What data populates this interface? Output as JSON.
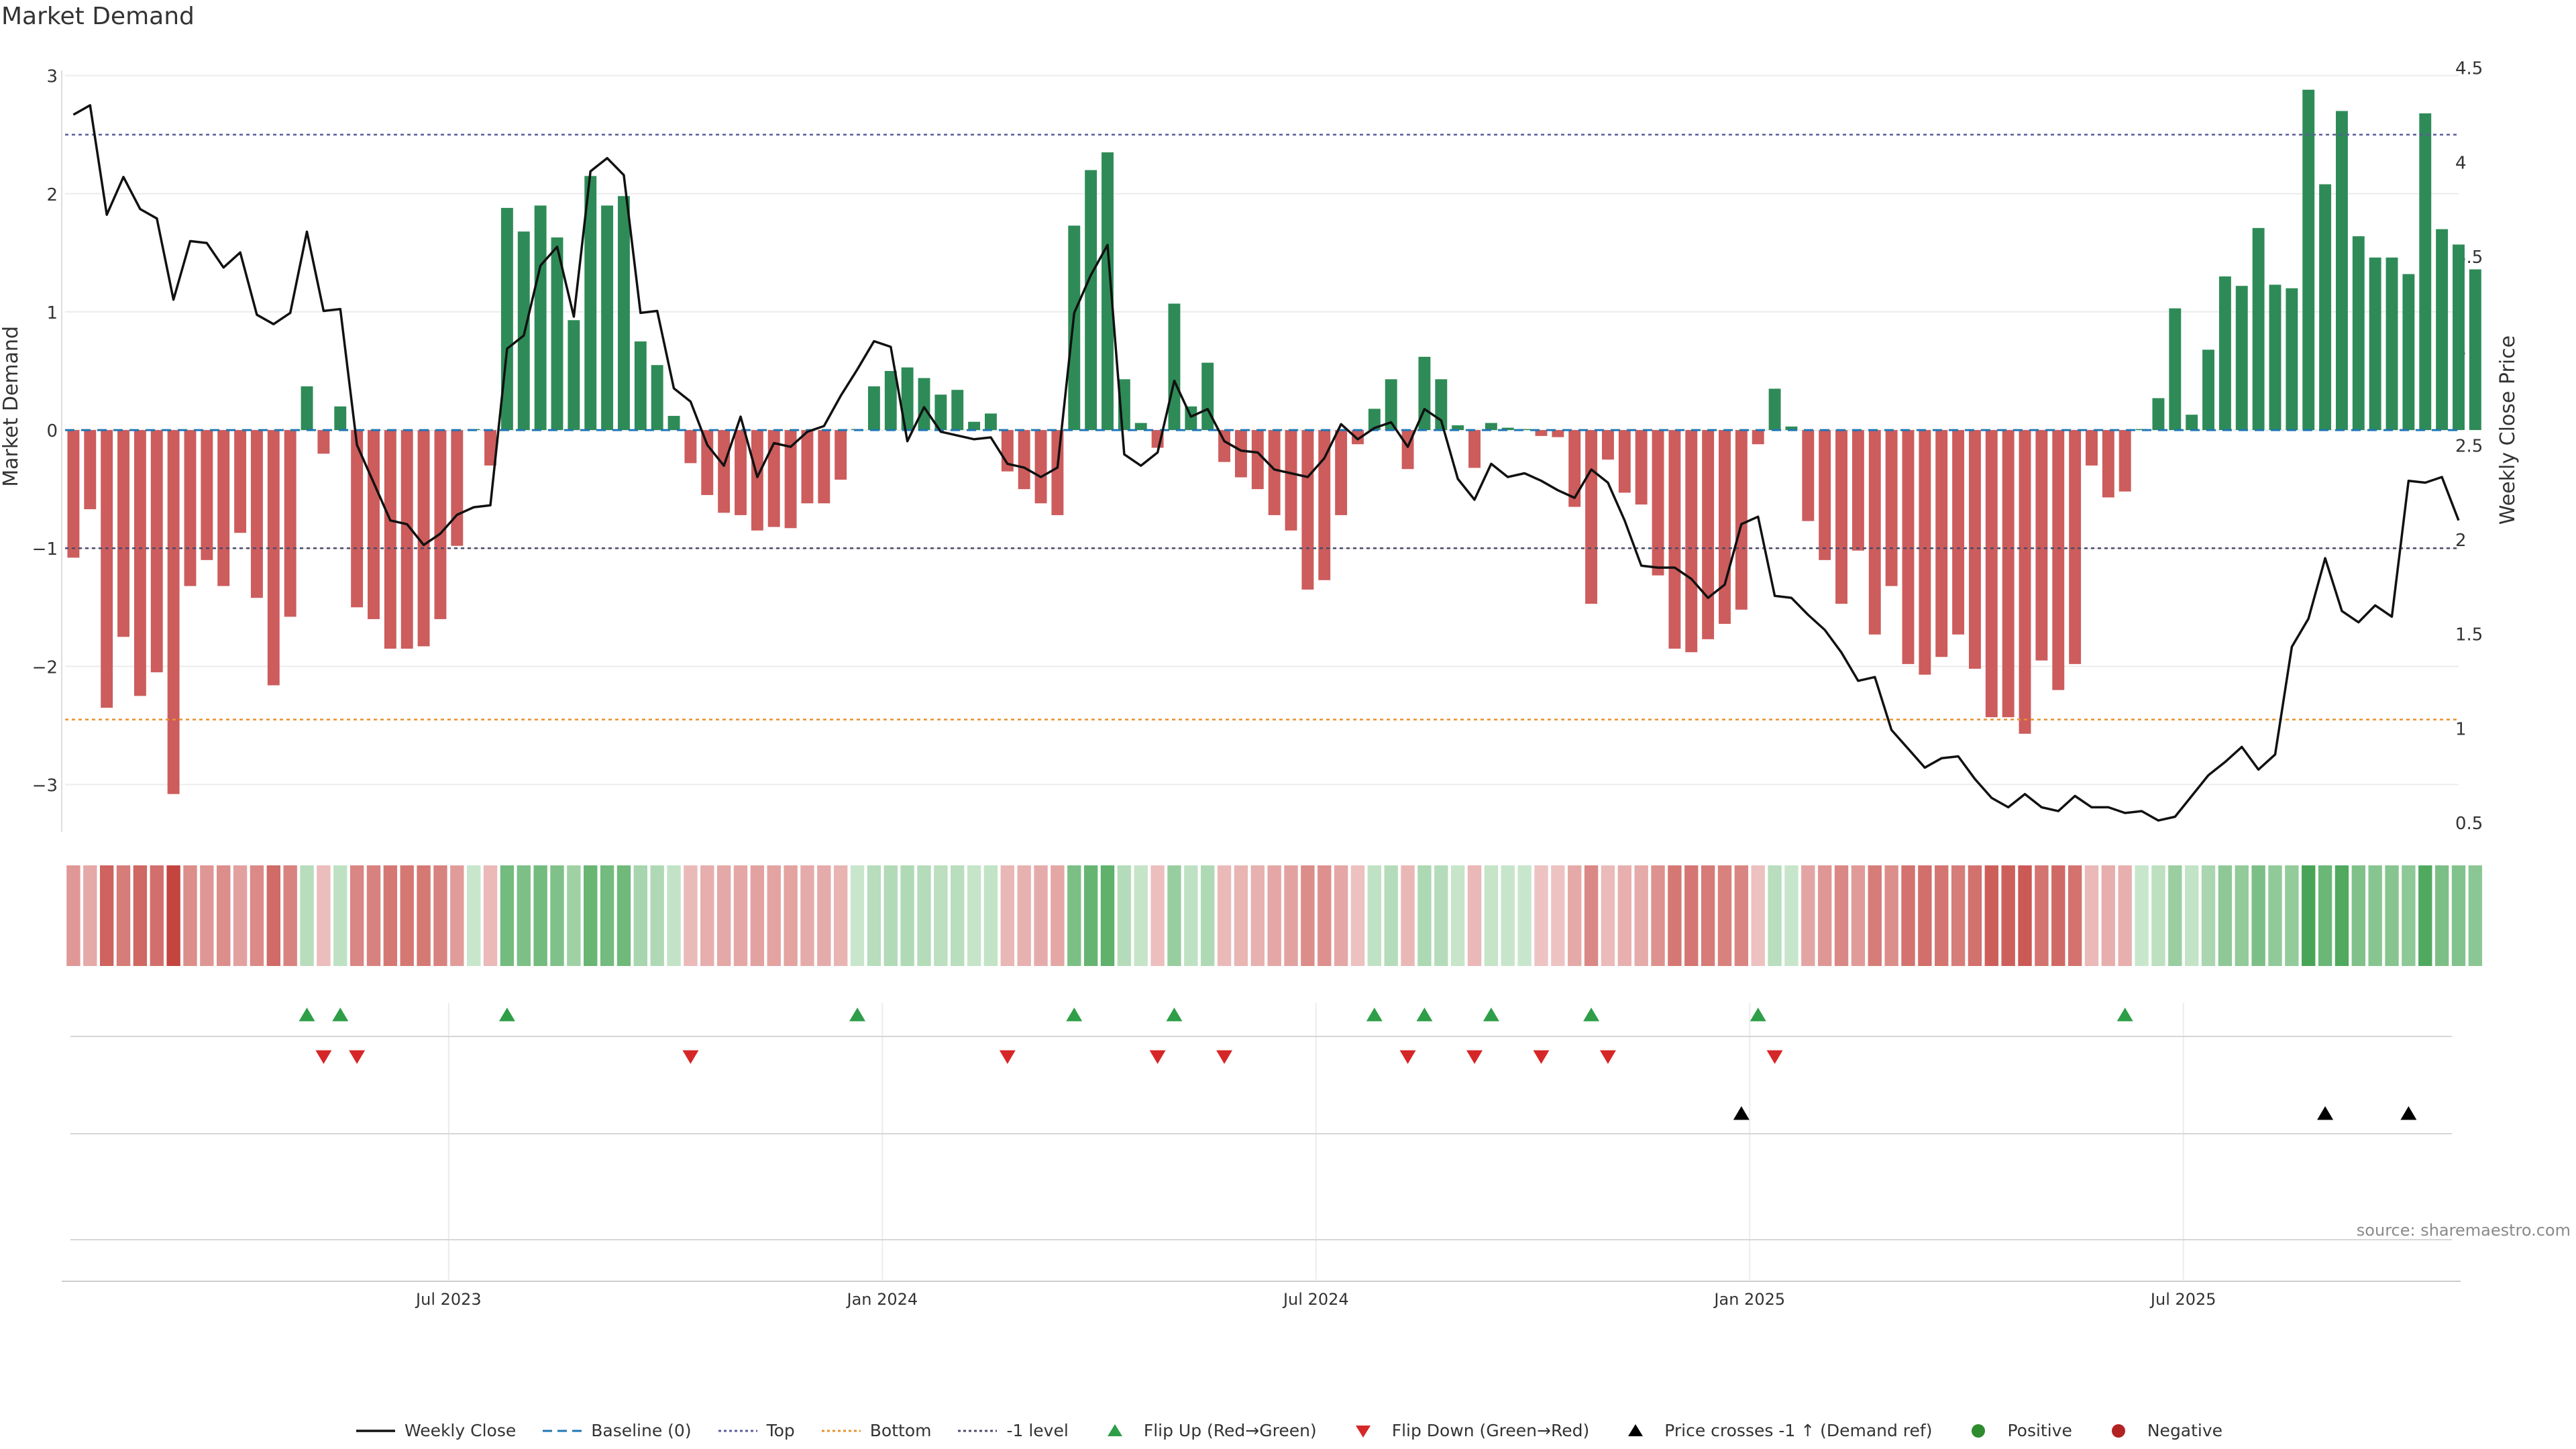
{
  "title": "Market Demand",
  "source": "source: sharemaestro.com",
  "colors": {
    "positive": "#2e8b57",
    "negative": "#cd5c5c",
    "price": "#111111",
    "top": "#5b5b9b",
    "bottom": "#e8912e",
    "minus1": "#4a4a6a",
    "baseline": "#1f77b4",
    "flip_up": "#2e9e48",
    "flip_down": "#d62728",
    "cross": "#000000"
  },
  "chart_data": {
    "type": "bar",
    "title": "Market Demand",
    "ylabel": "Market Demand",
    "y2label": "Weekly Close Price",
    "ylim": [
      -3.4,
      3.1
    ],
    "y2lim": [
      0.45,
      4.52
    ],
    "yticks": [
      "−3",
      "−2",
      "−1",
      "0",
      "1",
      "2",
      "3"
    ],
    "ytick_values": [
      -3,
      -2,
      -1,
      0,
      1,
      2,
      3
    ],
    "y2ticks": [
      "0.5",
      "1",
      "1.5",
      "2",
      "2.5",
      "3",
      "3.5",
      "4",
      "4.5"
    ],
    "y2tick_values": [
      0.5,
      1,
      1.5,
      2,
      2.5,
      3,
      3.5,
      4,
      4.5
    ],
    "xticks": [
      "Jul 2023",
      "Jan 2024",
      "Jul 2024",
      "Jan 2025",
      "Jul 2025"
    ],
    "xtick_weeks": [
      23,
      49,
      75,
      101,
      127
    ],
    "x_start_week": 0,
    "x_end_week": 143.5,
    "levels": {
      "top": 2.5,
      "bottom": -2.45,
      "minus1": -1,
      "baseline": 0
    },
    "demand": [
      -1.08,
      -0.67,
      -2.35,
      -1.75,
      -2.25,
      -2.05,
      -3.08,
      -1.32,
      -1.1,
      -1.32,
      -0.87,
      -1.42,
      -2.16,
      -1.58,
      0.37,
      -0.2,
      0.2,
      -1.5,
      -1.6,
      -1.85,
      -1.85,
      -1.83,
      -1.6,
      -0.98,
      0,
      -0.3,
      1.88,
      1.68,
      1.9,
      1.63,
      0.93,
      2.15,
      1.9,
      1.98,
      0.75,
      0.55,
      0.12,
      -0.28,
      -0.55,
      -0.7,
      -0.72,
      -0.85,
      -0.82,
      -0.83,
      -0.62,
      -0.62,
      -0.42,
      0,
      0.37,
      0.5,
      0.53,
      0.44,
      0.3,
      0.34,
      0.07,
      0.14,
      -0.35,
      -0.5,
      -0.62,
      -0.72,
      1.73,
      2.2,
      2.35,
      0.43,
      0.06,
      -0.15,
      1.07,
      0.2,
      0.57,
      -0.27,
      -0.4,
      -0.5,
      -0.72,
      -0.85,
      -1.35,
      -1.27,
      -0.72,
      -0.12,
      0.18,
      0.43,
      -0.33,
      0.62,
      0.43,
      0.04,
      -0.32,
      0.06,
      0.02,
      0,
      -0.05,
      -0.06,
      -0.65,
      -1.47,
      -0.25,
      -0.53,
      -0.63,
      -1.23,
      -1.85,
      -1.88,
      -1.77,
      -1.64,
      -1.52,
      -0.12,
      0.35,
      0.03,
      -0.77,
      -1.1,
      -1.47,
      -1.02,
      -1.73,
      -1.32,
      -1.98,
      -2.07,
      -1.92,
      -1.73,
      -2.02,
      -2.43,
      -2.43,
      -2.57,
      -1.95,
      -2.2,
      -1.98,
      -0.3,
      -0.57,
      -0.52,
      0,
      0.27,
      1.03,
      0.13,
      0.68,
      1.3,
      1.22,
      1.71,
      1.23,
      1.2,
      2.88,
      2.08,
      2.7,
      1.64,
      1.46,
      1.46,
      1.32,
      2.68,
      1.7,
      1.57,
      1.36
    ],
    "price": [
      4.25,
      4.3,
      3.72,
      3.92,
      3.75,
      3.7,
      3.27,
      3.58,
      3.57,
      3.44,
      3.52,
      3.19,
      3.14,
      3.2,
      3.63,
      3.21,
      3.22,
      2.5,
      2.3,
      2.1,
      2.08,
      1.97,
      2.03,
      2.13,
      2.17,
      2.18,
      3.01,
      3.08,
      3.45,
      3.55,
      3.18,
      3.95,
      4.02,
      3.93,
      3.2,
      3.21,
      2.8,
      2.73,
      2.5,
      2.39,
      2.65,
      2.33,
      2.51,
      2.49,
      2.57,
      2.6,
      2.76,
      2.9,
      3.05,
      3.02,
      2.52,
      2.7,
      2.57,
      2.55,
      2.53,
      2.54,
      2.4,
      2.38,
      2.33,
      2.38,
      3.2,
      3.4,
      3.56,
      2.45,
      2.39,
      2.46,
      2.84,
      2.65,
      2.69,
      2.52,
      2.47,
      2.46,
      2.37,
      2.35,
      2.33,
      2.43,
      2.61,
      2.53,
      2.59,
      2.62,
      2.49,
      2.69,
      2.63,
      2.32,
      2.21,
      2.4,
      2.33,
      2.35,
      2.31,
      2.26,
      2.22,
      2.37,
      2.3,
      2.1,
      1.86,
      1.85,
      1.85,
      1.79,
      1.69,
      1.76,
      2.08,
      2.12,
      1.7,
      1.69,
      1.6,
      1.52,
      1.4,
      1.25,
      1.27,
      0.99,
      0.89,
      0.79,
      0.84,
      0.85,
      0.73,
      0.63,
      0.58,
      0.65,
      0.58,
      0.56,
      0.64,
      0.58,
      0.58,
      0.55,
      0.56,
      0.51,
      0.53,
      0.64,
      0.75,
      0.82,
      0.9,
      0.78,
      0.86,
      1.43,
      1.58,
      1.9,
      1.62,
      1.56,
      1.65,
      1.59,
      2.31,
      2.3,
      2.33,
      2.1
    ],
    "flip_up_weeks": [
      14,
      16,
      26,
      47,
      60,
      66,
      78,
      81,
      85,
      91,
      101,
      123
    ],
    "flip_down_weeks": [
      15,
      17,
      37,
      56,
      65,
      69,
      80,
      84,
      88,
      92,
      102
    ],
    "cross_weeks": [
      100,
      135,
      140
    ]
  },
  "legend": [
    {
      "label": "Weekly Close",
      "kind": "line",
      "color": "#111111",
      "icon": "solid-line"
    },
    {
      "label": "Baseline (0)",
      "kind": "dashed",
      "color": "#1f77b4",
      "icon": "dashed-line"
    },
    {
      "label": "Top",
      "kind": "dotted",
      "color": "#5b5b9b",
      "icon": "dotted-line"
    },
    {
      "label": "Bottom",
      "kind": "dotted",
      "color": "#e8912e",
      "icon": "dotted-line"
    },
    {
      "label": "-1 level",
      "kind": "dotted",
      "color": "#4a4a6a",
      "icon": "dotted-line"
    },
    {
      "label": "Flip Up (Red→Green)",
      "kind": "tri-up",
      "color": "#2e9e48",
      "icon": "triangle-up-icon"
    },
    {
      "label": "Flip Down (Green→Red)",
      "kind": "tri-down",
      "color": "#d62728",
      "icon": "triangle-down-icon"
    },
    {
      "label": "Price crosses -1 ↑ (Demand ref)",
      "kind": "tri-up",
      "color": "#000000",
      "icon": "triangle-up-icon"
    },
    {
      "label": "Positive",
      "kind": "dot",
      "color": "#2e8b2e",
      "icon": "dot-icon"
    },
    {
      "label": "Negative",
      "kind": "dot",
      "color": "#b22222",
      "icon": "dot-icon"
    }
  ]
}
